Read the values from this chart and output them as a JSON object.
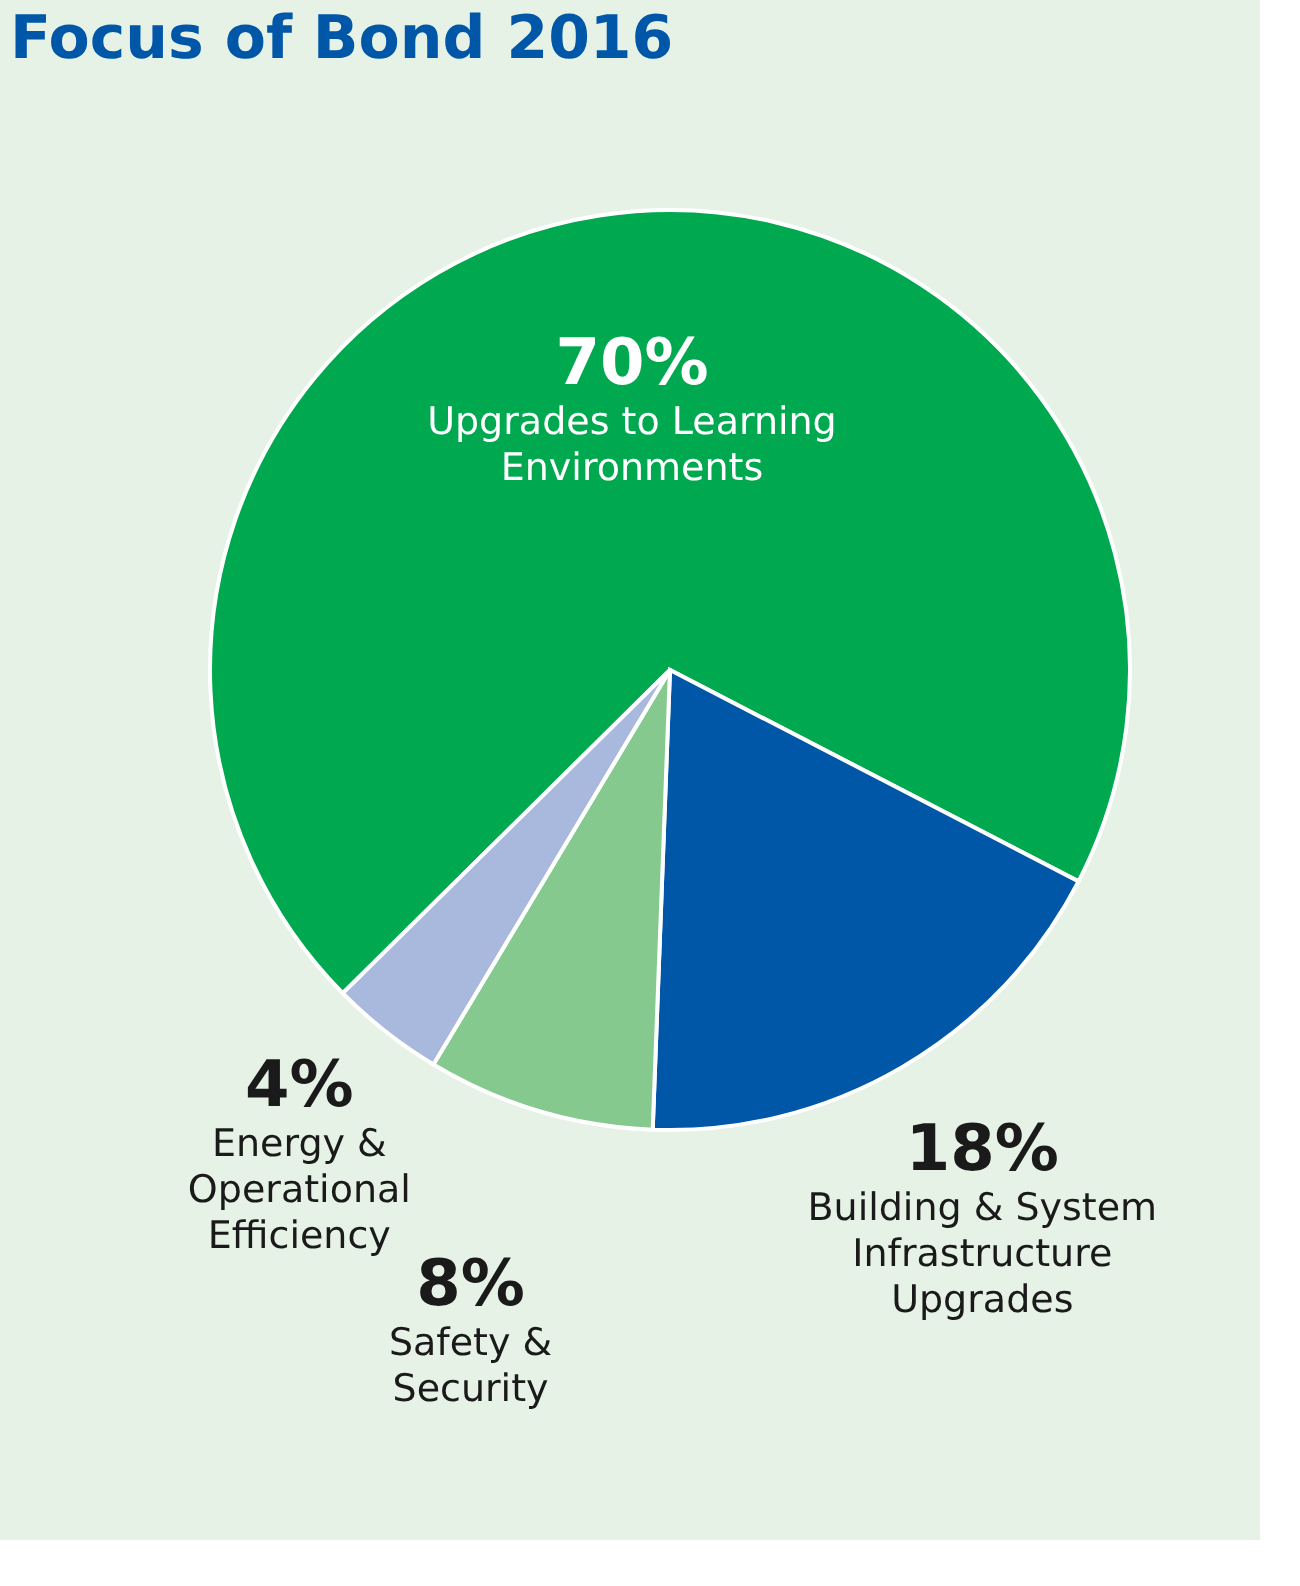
{
  "chart_data": {
    "type": "pie",
    "title": "Focus of Bond 2016",
    "categories": [
      "Upgrades to Learning Environments",
      "Building & System Infrastructure Upgrades",
      "Safety & Security",
      "Energy & Operational Efficiency"
    ],
    "values": [
      70,
      18,
      8,
      4
    ],
    "value_labels": [
      "70%",
      "18%",
      "8%",
      "4%"
    ],
    "colors": [
      "#00a84f",
      "#0057a8",
      "#86c98f",
      "#a9b8dd"
    ],
    "legend": false
  }
}
